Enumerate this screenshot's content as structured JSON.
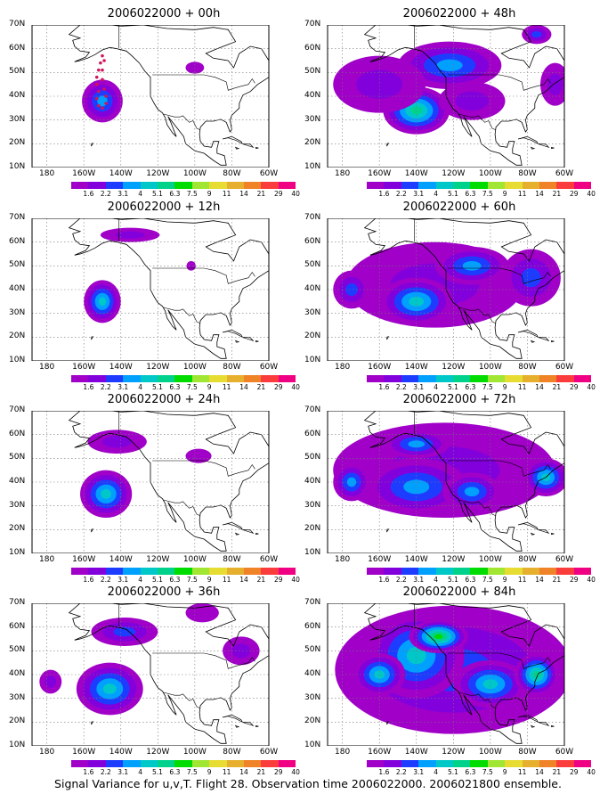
{
  "figure": {
    "caption": "Signal Variance for u,v,T. Flight 28. Observation time 2006022000. 2006021800 ensemble.",
    "x_ticks": [
      "180",
      "160W",
      "140W",
      "120W",
      "100W",
      "80W",
      "60W"
    ],
    "y_ticks": [
      "70N",
      "60N",
      "50N",
      "40N",
      "30N",
      "20N",
      "10N"
    ],
    "colorbar": {
      "labels": [
        "1.6",
        "2.2",
        "3.1",
        "4",
        "5.1",
        "6.3",
        "7.5",
        "9",
        "11",
        "14",
        "21",
        "29",
        "40"
      ],
      "colors": [
        "#a000c8",
        "#8200dc",
        "#1e3cff",
        "#00a0ff",
        "#00c8c8",
        "#00d28c",
        "#00dc00",
        "#a0e632",
        "#e6dc32",
        "#e6af2d",
        "#f08228",
        "#fa3c3c",
        "#f00082"
      ]
    },
    "panels": [
      {
        "title": "2006022000 + 00h",
        "obs_track": true,
        "blobs": [
          {
            "lon": -150,
            "lat": 38,
            "rx": 11,
            "ry": 9,
            "level": 4
          },
          {
            "lon": -100,
            "lat": 52,
            "rx": 5,
            "ry": 2.5,
            "level": 1
          }
        ]
      },
      {
        "title": "2006022000 + 12h",
        "blobs": [
          {
            "lon": -150,
            "lat": 35,
            "rx": 10,
            "ry": 9,
            "level": 5
          },
          {
            "lon": -135,
            "lat": 63,
            "rx": 16,
            "ry": 3,
            "level": 2
          },
          {
            "lon": -102,
            "lat": 50,
            "rx": 2.5,
            "ry": 2,
            "level": 1
          }
        ]
      },
      {
        "title": "2006022000 + 24h",
        "blobs": [
          {
            "lon": -148,
            "lat": 35,
            "rx": 14,
            "ry": 10,
            "level": 5
          },
          {
            "lon": -142,
            "lat": 57,
            "rx": 16,
            "ry": 5,
            "level": 2
          },
          {
            "lon": -98,
            "lat": 51,
            "rx": 7,
            "ry": 3,
            "level": 1
          }
        ]
      },
      {
        "title": "2006022000 + 36h",
        "blobs": [
          {
            "lon": -146,
            "lat": 34,
            "rx": 18,
            "ry": 11,
            "level": 5
          },
          {
            "lon": -138,
            "lat": 58,
            "rx": 18,
            "ry": 6,
            "level": 3
          },
          {
            "lon": -75,
            "lat": 50,
            "rx": 10,
            "ry": 6,
            "level": 2
          },
          {
            "lon": -178,
            "lat": 37,
            "rx": 6,
            "ry": 5,
            "level": 2
          },
          {
            "lon": -96,
            "lat": 66,
            "rx": 9,
            "ry": 4,
            "level": 1
          }
        ]
      },
      {
        "title": "2006022000 + 48h",
        "blobs": [
          {
            "lon": -140,
            "lat": 34,
            "rx": 18,
            "ry": 10,
            "level": 6
          },
          {
            "lon": -122,
            "lat": 53,
            "rx": 28,
            "ry": 10,
            "level": 4
          },
          {
            "lon": -160,
            "lat": 45,
            "rx": 25,
            "ry": 12,
            "level": 2
          },
          {
            "lon": -110,
            "lat": 38,
            "rx": 18,
            "ry": 8,
            "level": 2
          },
          {
            "lon": -75,
            "lat": 66,
            "rx": 8,
            "ry": 4,
            "level": 3
          },
          {
            "lon": -65,
            "lat": 45,
            "rx": 8,
            "ry": 9,
            "level": 2
          }
        ]
      },
      {
        "title": "2006022000 + 60h",
        "blobs": [
          {
            "lon": -130,
            "lat": 42,
            "rx": 48,
            "ry": 18,
            "level": 2
          },
          {
            "lon": -140,
            "lat": 35,
            "rx": 20,
            "ry": 10,
            "level": 5
          },
          {
            "lon": -110,
            "lat": 50,
            "rx": 20,
            "ry": 8,
            "level": 4
          },
          {
            "lon": -78,
            "lat": 45,
            "rx": 16,
            "ry": 12,
            "level": 3
          },
          {
            "lon": -175,
            "lat": 40,
            "rx": 10,
            "ry": 8,
            "level": 3
          }
        ]
      },
      {
        "title": "2006022000 + 72h",
        "blobs": [
          {
            "lon": -125,
            "lat": 45,
            "rx": 60,
            "ry": 20,
            "level": 2
          },
          {
            "lon": -140,
            "lat": 38,
            "rx": 28,
            "ry": 12,
            "level": 4
          },
          {
            "lon": -110,
            "lat": 36,
            "rx": 16,
            "ry": 8,
            "level": 4
          },
          {
            "lon": -140,
            "lat": 56,
            "rx": 18,
            "ry": 6,
            "level": 4
          },
          {
            "lon": -70,
            "lat": 42,
            "rx": 12,
            "ry": 8,
            "level": 5
          },
          {
            "lon": -175,
            "lat": 40,
            "rx": 10,
            "ry": 8,
            "level": 4
          }
        ]
      },
      {
        "title": "2006022000 + 84h",
        "blobs": [
          {
            "lon": -120,
            "lat": 42,
            "rx": 64,
            "ry": 27,
            "level": 3
          },
          {
            "lon": -140,
            "lat": 48,
            "rx": 26,
            "ry": 18,
            "level": 5
          },
          {
            "lon": -128,
            "lat": 56,
            "rx": 16,
            "ry": 7,
            "level": 7
          },
          {
            "lon": -160,
            "lat": 40,
            "rx": 14,
            "ry": 9,
            "level": 5
          },
          {
            "lon": -100,
            "lat": 36,
            "rx": 20,
            "ry": 10,
            "level": 5
          },
          {
            "lon": -75,
            "lat": 40,
            "rx": 12,
            "ry": 9,
            "level": 6
          }
        ]
      }
    ]
  }
}
